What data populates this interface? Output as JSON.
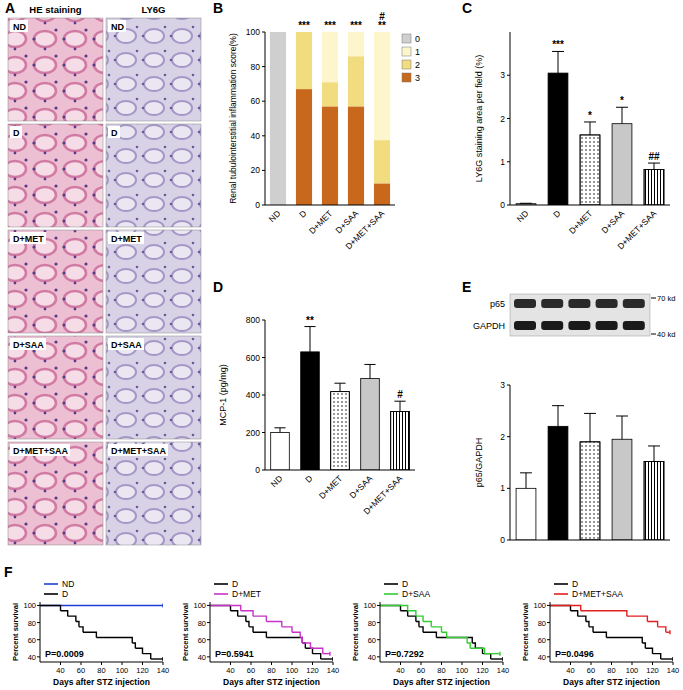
{
  "panel_a": {
    "label": "A",
    "columns": [
      "HE staining",
      "LY6G"
    ],
    "rows": [
      "ND",
      "D",
      "D+MET",
      "D+SAA",
      "D+MET+SAA"
    ]
  },
  "blot": {
    "bands": [
      "p65",
      "GAPDH"
    ],
    "markers": [
      "70 kd",
      "40 kd"
    ]
  },
  "chart_data": [
    {
      "panel_label": "B",
      "type": "bar",
      "stacked": true,
      "legend": "right",
      "y_label": "Renal tubulointerstitial inflammation score(%)",
      "categories": [
        "ND",
        "D",
        "D+MET",
        "D+SAA",
        "D+MET+SAA"
      ],
      "ylim": [
        0,
        100
      ],
      "yticks": [
        0,
        20,
        40,
        60,
        80,
        100
      ],
      "series": [
        {
          "name": "3",
          "color": "#c8681c",
          "values": [
            0,
            67,
            57,
            57,
            12.5
          ]
        },
        {
          "name": "2",
          "color": "#f2dc80",
          "values": [
            0,
            33,
            14,
            29,
            25
          ]
        },
        {
          "name": "1",
          "color": "#fdf5cc",
          "values": [
            0,
            0,
            29,
            14,
            62.5
          ]
        },
        {
          "name": "0",
          "color": "#cfcfcf",
          "values": [
            100,
            0,
            0,
            0,
            0
          ]
        }
      ],
      "annotations": [
        {
          "category": "D",
          "text": "***"
        },
        {
          "category": "D+MET",
          "text": "***"
        },
        {
          "category": "D+SAA",
          "text": "***"
        },
        {
          "category": "D+MET+SAA",
          "text": "**"
        },
        {
          "category": "D+MET+SAA",
          "text": "#"
        }
      ]
    },
    {
      "panel_label": "C",
      "type": "bar",
      "y_label": "LY6G staining area per field (%)",
      "categories": [
        "ND",
        "D",
        "D+MET",
        "D+SAA",
        "D+MET+SAA"
      ],
      "ylim": [
        0,
        4
      ],
      "yticks": [
        0,
        1,
        2,
        3
      ],
      "series": [
        {
          "values": [
            0.03,
            3.05,
            1.62,
            1.88,
            0.82
          ],
          "errors": [
            0.01,
            0.5,
            0.3,
            0.38,
            0.15
          ],
          "colors": [
            "#ffffff",
            "#000000",
            "#ffffff",
            "#c8c8c8",
            "#ffffff"
          ]
        }
      ],
      "annotations": [
        {
          "category": "D",
          "text": "***"
        },
        {
          "category": "D+MET",
          "text": "*"
        },
        {
          "category": "D+SAA",
          "text": "*"
        },
        {
          "category": "D+MET+SAA",
          "text": "##"
        }
      ]
    },
    {
      "panel_label": "D",
      "type": "bar",
      "y_label": "MCP-1 (pg/mg)",
      "categories": [
        "ND",
        "D",
        "D+MET",
        "D+SAA",
        "D+MET+SAA"
      ],
      "ylim": [
        0,
        800
      ],
      "yticks": [
        0,
        200,
        400,
        600,
        800
      ],
      "series": [
        {
          "values": [
            200,
            630,
            418,
            488,
            312
          ],
          "errors": [
            25,
            135,
            45,
            75,
            55
          ],
          "colors": [
            "#ffffff",
            "#000000",
            "#ffffff",
            "#c8c8c8",
            "#ffffff"
          ]
        }
      ],
      "annotations": [
        {
          "category": "D",
          "text": "**"
        },
        {
          "category": "D+MET+SAA",
          "text": "#"
        }
      ]
    },
    {
      "panel_label": "E",
      "type": "bar",
      "y_label": "p65/GAPDH",
      "categories": [
        null,
        null,
        null,
        null,
        null
      ],
      "ylim": [
        0,
        3
      ],
      "yticks": [
        0,
        1,
        2,
        3
      ],
      "series": [
        {
          "values": [
            1.0,
            2.2,
            1.9,
            1.95,
            1.52
          ],
          "errors": [
            0.3,
            0.4,
            0.55,
            0.45,
            0.3
          ],
          "colors": [
            "#ffffff",
            "#000000",
            "#ffffff",
            "#c8c8c8",
            "#ffffff"
          ]
        }
      ]
    },
    {
      "panel_label": "F",
      "type": "line",
      "legend": "top left",
      "x_label": "Days after STZ injection",
      "y_label": "Percent survival",
      "xlim": [
        20,
        140
      ],
      "xticks": [
        40,
        60,
        80,
        100,
        120,
        140
      ],
      "ylim": [
        34,
        104
      ],
      "yticks": [
        40,
        60,
        80,
        100
      ],
      "series": [
        {
          "name": "ND",
          "color": "#1f3fd6",
          "line_style": "step",
          "x": [
            20,
            140
          ],
          "values": [
            100,
            100
          ]
        },
        {
          "name": "D",
          "color": "#000000",
          "line_style": "step",
          "x": [
            20,
            40,
            47,
            55,
            58,
            62,
            75,
            110,
            113,
            120,
            128,
            140
          ],
          "values": [
            100,
            93.75,
            87.5,
            81.25,
            75,
            68.75,
            62.5,
            56.25,
            50,
            43.75,
            37.5,
            37.5
          ]
        }
      ],
      "annotations": [
        {
          "text": "P=0.0009"
        }
      ]
    },
    {
      "type": "line",
      "legend": "top left",
      "x_label": "Days after STZ injection",
      "y_label": "Percent survival",
      "xlim": [
        20,
        140
      ],
      "xticks": [
        40,
        60,
        80,
        100,
        120,
        140
      ],
      "ylim": [
        34,
        104
      ],
      "yticks": [
        40,
        60,
        80,
        100
      ],
      "series": [
        {
          "name": "D",
          "color": "#000000",
          "line_style": "step",
          "x": [
            20,
            40,
            47,
            55,
            58,
            62,
            75,
            110,
            113,
            120,
            128,
            140
          ],
          "values": [
            100,
            93.75,
            87.5,
            81.25,
            75,
            68.75,
            62.5,
            56.25,
            50,
            43.75,
            37.5,
            37.5
          ]
        },
        {
          "name": "D+MET",
          "color": "#c832c8",
          "line_style": "step",
          "x": [
            20,
            50,
            62,
            75,
            90,
            100,
            108,
            110,
            118,
            130,
            137
          ],
          "values": [
            100,
            93.75,
            87.5,
            81.25,
            75,
            68.75,
            62.5,
            56.25,
            50,
            43.75,
            43.75
          ]
        }
      ],
      "annotations": [
        {
          "text": "P=0.5941"
        }
      ]
    },
    {
      "type": "line",
      "legend": "top left",
      "x_label": "Days after STZ injection",
      "y_label": "Percent survival",
      "xlim": [
        20,
        140
      ],
      "xticks": [
        40,
        60,
        80,
        100,
        120,
        140
      ],
      "ylim": [
        34,
        104
      ],
      "yticks": [
        40,
        60,
        80,
        100
      ],
      "series": [
        {
          "name": "D",
          "color": "#000000",
          "line_style": "step",
          "x": [
            20,
            40,
            47,
            55,
            58,
            62,
            75,
            110,
            113,
            120,
            128,
            140
          ],
          "values": [
            100,
            93.75,
            87.5,
            81.25,
            75,
            68.75,
            62.5,
            56.25,
            50,
            43.75,
            37.5,
            37.5
          ]
        },
        {
          "name": "D+SAA",
          "color": "#33cc33",
          "line_style": "step",
          "x": [
            20,
            47,
            55,
            62,
            70,
            80,
            85,
            105,
            108,
            122,
            137
          ],
          "values": [
            100,
            93.75,
            87.5,
            81.25,
            75,
            68.75,
            62.5,
            56.25,
            50,
            43.75,
            43.75
          ]
        }
      ],
      "annotations": [
        {
          "text": "P=0.7292"
        }
      ]
    },
    {
      "type": "line",
      "legend": "top left",
      "x_label": "Days after STZ injection",
      "y_label": "Percent survival",
      "xlim": [
        20,
        140
      ],
      "xticks": [
        40,
        60,
        80,
        100,
        120,
        140
      ],
      "ylim": [
        34,
        104
      ],
      "yticks": [
        40,
        60,
        80,
        100
      ],
      "series": [
        {
          "name": "D",
          "color": "#000000",
          "line_style": "step",
          "x": [
            20,
            40,
            47,
            55,
            58,
            62,
            75,
            110,
            113,
            120,
            128,
            140
          ],
          "values": [
            100,
            93.75,
            87.5,
            81.25,
            75,
            68.75,
            62.5,
            56.25,
            50,
            43.75,
            37.5,
            37.5
          ]
        },
        {
          "name": "D+MET+SAA",
          "color": "#e02020",
          "line_style": "step",
          "x": [
            20,
            50,
            95,
            115,
            125,
            133,
            137
          ],
          "values": [
            100,
            93.75,
            87.5,
            81.25,
            75,
            68.75,
            68.75
          ]
        }
      ],
      "annotations": [
        {
          "text": "P=0.0496"
        }
      ]
    }
  ]
}
